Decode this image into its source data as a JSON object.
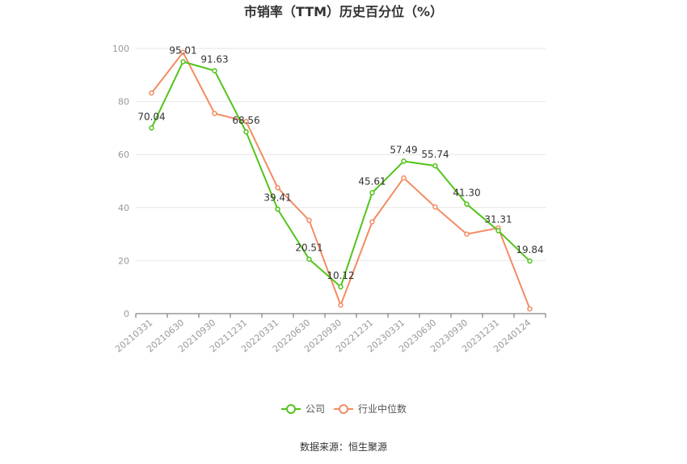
{
  "chart_data": {
    "type": "line",
    "title": "市销率（TTM）历史百分位（%）",
    "categories": [
      "20210331",
      "20210630",
      "20210930",
      "20211231",
      "20220331",
      "20220630",
      "20220930",
      "20221231",
      "20230331",
      "20230630",
      "20230930",
      "20231231",
      "20240124"
    ],
    "ylim": [
      0,
      100
    ],
    "yticks": [
      0,
      20,
      40,
      60,
      80,
      100
    ],
    "grid": true,
    "legend_position": "bottom",
    "series": [
      {
        "name": "公司",
        "color": "#52c41a",
        "values": [
          70.04,
          95.01,
          91.63,
          68.56,
          39.41,
          20.51,
          10.12,
          45.61,
          57.49,
          55.74,
          41.3,
          31.31,
          19.84
        ],
        "labels": [
          "70.04",
          "95.01",
          "91.63",
          "68.56",
          "39.41",
          "20.51",
          "10.12",
          "45.61",
          "57.49",
          "55.74",
          "41.30",
          "31.31",
          "19.84"
        ]
      },
      {
        "name": "行业中位数",
        "color": "#f28c63",
        "values": [
          83.2,
          98.5,
          75.5,
          72.5,
          47.5,
          35.2,
          3.2,
          34.6,
          51.2,
          40.2,
          30.0,
          32.3,
          1.8
        ]
      }
    ]
  },
  "source": "数据来源：恒生聚源"
}
